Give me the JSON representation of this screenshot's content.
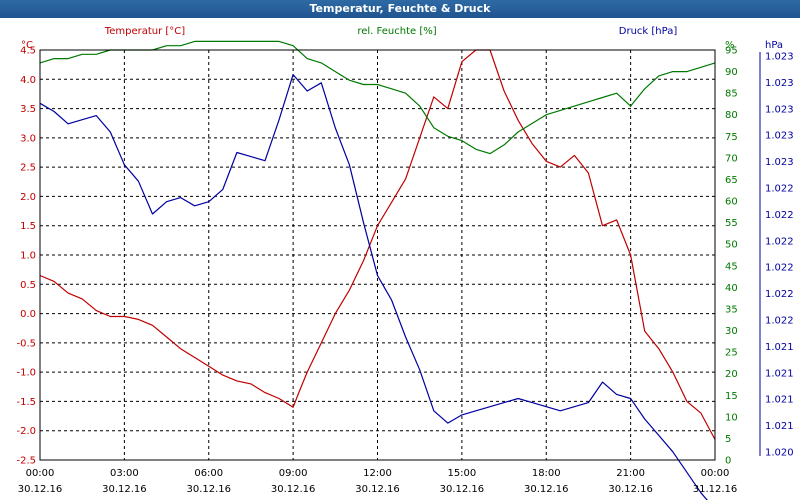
{
  "window": {
    "title": "Temperatur, Feuchte & Druck"
  },
  "chart_data": {
    "type": "line",
    "title": "Temperatur, Feuchte & Druck",
    "colors": {
      "temperature": "#c00000",
      "humidity": "#007800",
      "pressure": "#0000a0",
      "grid": "#000000"
    },
    "x_ticks": [
      {
        "hour": 0,
        "time": "00:00",
        "date": "30.12.16"
      },
      {
        "hour": 3,
        "time": "03:00",
        "date": "30.12.16"
      },
      {
        "hour": 6,
        "time": "06:00",
        "date": "30.12.16"
      },
      {
        "hour": 9,
        "time": "09:00",
        "date": "30.12.16"
      },
      {
        "hour": 12,
        "time": "12:00",
        "date": "30.12.16"
      },
      {
        "hour": 15,
        "time": "15:00",
        "date": "30.12.16"
      },
      {
        "hour": 18,
        "time": "18:00",
        "date": "30.12.16"
      },
      {
        "hour": 21,
        "time": "21:00",
        "date": "30.12.16"
      },
      {
        "hour": 24,
        "time": "00:00",
        "date": "31.12.16"
      }
    ],
    "xlim": [
      0,
      24
    ],
    "axes": {
      "temperature": {
        "label": "Temperatur [°C]",
        "unit": "°C",
        "ylim": [
          -2.5,
          4.5
        ],
        "ticks": [
          "4.5",
          "4.0",
          "3.5",
          "3.0",
          "2.5",
          "2.0",
          "1.5",
          "1.0",
          "0.5",
          "0.0",
          "-0.5",
          "-1.0",
          "-1.5",
          "-2.0",
          "-2.5"
        ]
      },
      "humidity": {
        "label": "rel. Feuchte [%]",
        "unit": "%",
        "ylim": [
          0,
          95
        ],
        "ticks": [
          "95",
          "90",
          "85",
          "80",
          "75",
          "70",
          "65",
          "60",
          "55",
          "50",
          "45",
          "40",
          "35",
          "30",
          "25",
          "20",
          "15",
          "10",
          "5",
          "0"
        ]
      },
      "pressure": {
        "label": "Druck [hPa]",
        "unit": "hPa",
        "ticks": [
          "1.023",
          "1.023",
          "1.023",
          "1.023",
          "1.023",
          "1.022",
          "1.022",
          "1.022",
          "1.022",
          "1.022",
          "1.022",
          "1.021",
          "1.021",
          "1.021",
          "1.021",
          "1.020"
        ]
      }
    },
    "series": [
      {
        "name": "Temperatur [°C]",
        "key": "temperature",
        "x": [
          0,
          0.5,
          1,
          1.5,
          2,
          2.5,
          3,
          3.5,
          4,
          4.5,
          5,
          5.5,
          6,
          6.5,
          7,
          7.5,
          8,
          8.5,
          9,
          9.2,
          9.5,
          10,
          10.5,
          11,
          11.5,
          12,
          12.5,
          13,
          13.5,
          14,
          14.5,
          15,
          15.5,
          16,
          16.5,
          17,
          17.5,
          18,
          18.5,
          19,
          19.5,
          20,
          20.5,
          21,
          21.5,
          22,
          22.5,
          23,
          23.5,
          24
        ],
        "values": [
          0.65,
          0.55,
          0.35,
          0.25,
          0.05,
          -0.05,
          -0.05,
          -0.1,
          -0.2,
          -0.4,
          -0.6,
          -0.75,
          -0.9,
          -1.05,
          -1.15,
          -1.2,
          -1.35,
          -1.45,
          -1.6,
          -1.35,
          -1.0,
          -0.5,
          0.0,
          0.4,
          0.9,
          1.5,
          1.9,
          2.3,
          3.0,
          3.7,
          3.5,
          4.3,
          4.5,
          4.5,
          3.8,
          3.3,
          2.9,
          2.6,
          2.5,
          2.7,
          2.4,
          1.5,
          1.6,
          1.0,
          -0.3,
          -0.6,
          -1.0,
          -1.5,
          -1.7,
          -2.15
        ]
      },
      {
        "name": "rel. Feuchte [%]",
        "key": "humidity",
        "x": [
          0,
          0.5,
          1,
          1.5,
          2,
          2.5,
          3,
          3.5,
          4,
          4.5,
          5,
          5.5,
          6,
          6.5,
          7,
          7.5,
          8,
          8.5,
          9,
          9.5,
          10,
          10.5,
          11,
          11.5,
          12,
          12.5,
          13,
          13.5,
          14,
          14.5,
          15,
          15.5,
          16,
          16.5,
          17,
          17.5,
          18,
          18.5,
          19,
          19.5,
          20,
          20.5,
          21,
          21.5,
          22,
          22.5,
          23,
          23.5,
          24
        ],
        "values": [
          92,
          93,
          93,
          94,
          94,
          95,
          95,
          95,
          95,
          96,
          96,
          97,
          97,
          97,
          97,
          97,
          97,
          97,
          96,
          93,
          92,
          90,
          88,
          87,
          87,
          86,
          85,
          82,
          77,
          75,
          74,
          72,
          71,
          73,
          76,
          78,
          80,
          81,
          82,
          83,
          84,
          85,
          82,
          86,
          89,
          90,
          90,
          91,
          92
        ]
      },
      {
        "name": "Druck [hPa]",
        "key": "pressure",
        "x": [
          0,
          0.5,
          1,
          1.5,
          2,
          2.5,
          3,
          3.5,
          4,
          4.5,
          5,
          5.5,
          6,
          6.5,
          7,
          7.5,
          8,
          8.5,
          9,
          9.5,
          10,
          10.5,
          11,
          11.5,
          12,
          12.5,
          13,
          13.5,
          14,
          14.5,
          15,
          15.5,
          16,
          16.5,
          17,
          17.5,
          18,
          18.5,
          19,
          19.5,
          20,
          20.5,
          21,
          21.5,
          22,
          22.5,
          23,
          23.5,
          24
        ],
        "values": [
          0.87,
          0.85,
          0.82,
          0.83,
          0.84,
          0.8,
          0.72,
          0.68,
          0.6,
          0.63,
          0.64,
          0.62,
          0.63,
          0.66,
          0.75,
          0.74,
          0.73,
          0.83,
          0.94,
          0.9,
          0.92,
          0.81,
          0.72,
          0.58,
          0.45,
          0.39,
          0.3,
          0.22,
          0.12,
          0.09,
          0.11,
          0.12,
          0.13,
          0.14,
          0.15,
          0.14,
          0.13,
          0.12,
          0.13,
          0.14,
          0.19,
          0.16,
          0.15,
          0.1,
          0.06,
          0.02,
          -0.03,
          -0.08,
          -0.12
        ]
      }
    ],
    "grid": true
  }
}
